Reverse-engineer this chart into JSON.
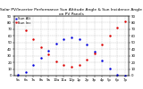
{
  "title": "Solar PV/Inverter Performance Sun Altitude Angle & Sun Incidence Angle on PV Panels",
  "background_color": "#ffffff",
  "grid_color": "#aaaaaa",
  "blue_color": "#0000dd",
  "red_color": "#dd0000",
  "blue_label": "Sun Alt",
  "red_label": "Sun Inc",
  "time_labels": [
    "5a",
    "6a",
    "7a",
    "8a",
    "9a",
    "10a",
    "11a",
    "12p",
    "1p",
    "2p",
    "3p",
    "4p",
    "5p",
    "6p",
    "7p"
  ],
  "blue_x": [
    5,
    6,
    7,
    8,
    9,
    10,
    11,
    12,
    13,
    14,
    15,
    16,
    17,
    18,
    19
  ],
  "blue_y": [
    1,
    6,
    16,
    27,
    38,
    48,
    55,
    58,
    55,
    47,
    36,
    23,
    11,
    2,
    0
  ],
  "red_x": [
    5,
    6,
    7,
    8,
    9,
    10,
    11,
    12,
    13,
    14,
    15,
    16,
    17,
    18,
    19
  ],
  "red_y": [
    80,
    68,
    55,
    43,
    32,
    22,
    16,
    14,
    16,
    24,
    34,
    47,
    60,
    72,
    82
  ],
  "ylim": [
    0,
    90
  ],
  "xlim": [
    4.5,
    19.5
  ],
  "yticks": [
    0,
    10,
    20,
    30,
    40,
    50,
    60,
    70,
    80,
    90
  ],
  "ytick_labels": [
    "0",
    "10",
    "20",
    "30",
    "40",
    "50",
    "60",
    "70",
    "80",
    "90"
  ],
  "title_fontsize": 3.2,
  "tick_fontsize": 2.8,
  "legend_fontsize": 2.8,
  "dot_size": 1.5,
  "linewidth": 0.3
}
